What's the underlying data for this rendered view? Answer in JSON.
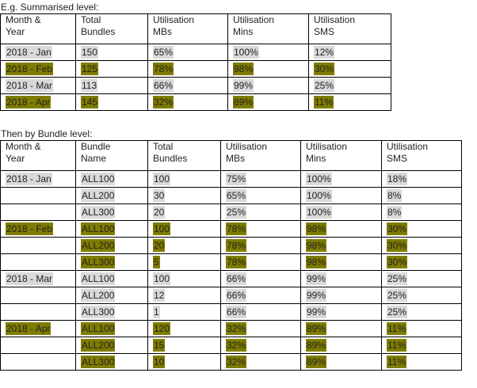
{
  "colors": {
    "highlight_grey": "#d9d9d9",
    "highlight_olive": "#7f7c00"
  },
  "summary": {
    "caption": "E.g. Summarised level:",
    "headers": [
      [
        "Month &",
        "Year"
      ],
      [
        "Total",
        "Bundles"
      ],
      [
        "Utilisation",
        "MBs"
      ],
      [
        "Utilisation",
        "Mins"
      ],
      [
        "Utilisation",
        "SMS"
      ]
    ],
    "rows": [
      {
        "highlight": "grey",
        "month": "2018 - Jan",
        "bundles": "150",
        "mbs": "65%",
        "mins": "100%",
        "sms": "12%"
      },
      {
        "highlight": "olive",
        "month": "2018 - Feb",
        "bundles": "125",
        "mbs": "78%",
        "mins": "98%",
        "sms": "30%"
      },
      {
        "highlight": "grey",
        "month": "2018 - Mar",
        "bundles": "113",
        "mbs": "66%",
        "mins": "99%",
        "sms": "25%"
      },
      {
        "highlight": "olive",
        "month": "2018 - Apr",
        "bundles": "145",
        "mbs": "32%",
        "mins": "89%",
        "sms": "11%"
      }
    ]
  },
  "bundle": {
    "caption": "Then by Bundle level:",
    "headers": [
      [
        "Month &",
        "Year"
      ],
      [
        "Bundle",
        "Name"
      ],
      [
        "Total",
        "Bundles"
      ],
      [
        "Utilisation",
        "MBs"
      ],
      [
        "Utilisation",
        "Mins"
      ],
      [
        "Utilisation",
        "SMS"
      ]
    ],
    "rows": [
      {
        "highlight": "grey",
        "month": "2018 - Jan",
        "name": "ALL100",
        "bundles": "100",
        "mbs": "75%",
        "mins": "100%",
        "sms": "18%"
      },
      {
        "highlight": "grey",
        "month": "",
        "name": "ALL200",
        "bundles": "30",
        "mbs": "65%",
        "mins": "100%",
        "sms": "8%"
      },
      {
        "highlight": "grey",
        "month": "",
        "name": "ALL300",
        "bundles": "20",
        "mbs": "25%",
        "mins": "100%",
        "sms": "8%"
      },
      {
        "highlight": "olive",
        "month": "2018 - Feb",
        "name": "ALL100",
        "bundles": "100",
        "mbs": "78%",
        "mins": "98%",
        "sms": "30%"
      },
      {
        "highlight": "olive",
        "month": "",
        "name": "ALL200",
        "bundles": "20",
        "mbs": "78%",
        "mins": "98%",
        "sms": "30%"
      },
      {
        "highlight": "olive",
        "month": "",
        "name": "ALL300",
        "bundles": "5",
        "mbs": "78%",
        "mins": "98%",
        "sms": "30%"
      },
      {
        "highlight": "grey",
        "month": "2018 - Mar",
        "name": "ALL100",
        "bundles": "100",
        "mbs": "66%",
        "mins": "99%",
        "sms": "25%"
      },
      {
        "highlight": "grey",
        "month": "",
        "name": "ALL200",
        "bundles": "12",
        "mbs": "66%",
        "mins": "99%",
        "sms": "25%"
      },
      {
        "highlight": "grey",
        "month": "",
        "name": "ALL300",
        "bundles": "1",
        "mbs": "66%",
        "mins": "99%",
        "sms": "25%"
      },
      {
        "highlight": "olive",
        "month": "2018 - Apr",
        "name": "ALL100",
        "bundles": "120",
        "mbs": "32%",
        "mins": "89%",
        "sms": "11%"
      },
      {
        "highlight": "olive",
        "month": "",
        "name": "ALL200",
        "bundles": "15",
        "mbs": "32%",
        "mins": "89%",
        "sms": "11%"
      },
      {
        "highlight": "olive",
        "month": "",
        "name": "ALL300",
        "bundles": "10",
        "mbs": "32%",
        "mins": "89%",
        "sms": "11%"
      }
    ]
  }
}
